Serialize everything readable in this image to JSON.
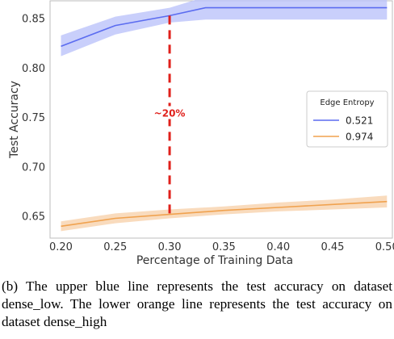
{
  "chart_data": {
    "type": "line",
    "xlabel": "Percentage of Training Data",
    "ylabel": "Test Accuracy",
    "xlim": [
      0.19,
      0.505
    ],
    "ylim": [
      0.628,
      0.868
    ],
    "xticks": [
      "0.20",
      "0.25",
      "0.30",
      "0.35",
      "0.40",
      "0.45",
      "0.50"
    ],
    "yticks": [
      "0.65",
      "0.70",
      "0.75",
      "0.80",
      "0.85"
    ],
    "grid": false,
    "legend": {
      "title": "Edge Entropy",
      "placement": "right"
    },
    "series": [
      {
        "name": "0.521",
        "color": "#5b6cf0",
        "band_color": "#bcc3fa",
        "x": [
          0.2,
          0.25,
          0.3,
          0.333,
          0.4,
          0.45,
          0.5
        ],
        "y": [
          0.822,
          0.843,
          0.853,
          0.861,
          0.861,
          0.861,
          0.861
        ],
        "lower": [
          0.812,
          0.834,
          0.846,
          0.849,
          0.849,
          0.849,
          0.849
        ],
        "upper": [
          0.833,
          0.852,
          0.861,
          0.872,
          0.872,
          0.872,
          0.872
        ]
      },
      {
        "name": "0.974",
        "color": "#f0a24f",
        "band_color": "#f8d2ac",
        "x": [
          0.2,
          0.25,
          0.3,
          0.35,
          0.4,
          0.45,
          0.5
        ],
        "y": [
          0.64,
          0.648,
          0.652,
          0.656,
          0.659,
          0.662,
          0.665
        ],
        "lower": [
          0.635,
          0.643,
          0.648,
          0.652,
          0.655,
          0.657,
          0.659
        ],
        "upper": [
          0.645,
          0.653,
          0.657,
          0.66,
          0.664,
          0.667,
          0.671
        ]
      }
    ],
    "annotation": {
      "text": "~20%",
      "x": 0.3,
      "y_top": 0.853,
      "y_bottom": 0.652,
      "color": "#e0201b"
    }
  },
  "caption": "(b) The upper blue line represents the test accuracy on dataset dense_low. The lower orange line represents the test accuracy on dataset dense_high"
}
